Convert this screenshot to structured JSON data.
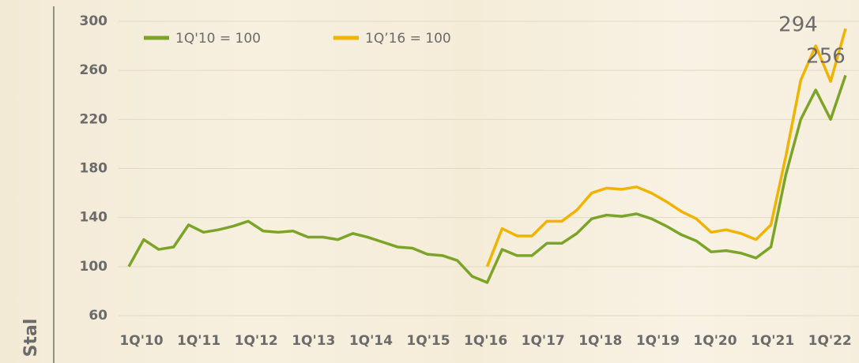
{
  "chart_data": {
    "type": "line",
    "y_label": "Stal",
    "categories": [
      "1Q'10",
      null,
      null,
      null,
      "1Q'11",
      null,
      null,
      null,
      "1Q'12",
      null,
      null,
      null,
      "1Q'13",
      null,
      null,
      null,
      "1Q'14",
      null,
      null,
      null,
      "1Q'15",
      null,
      null,
      null,
      "1Q'16",
      null,
      null,
      null,
      "1Q'17",
      null,
      null,
      null,
      "1Q'18",
      null,
      null,
      null,
      "1Q'19",
      null,
      null,
      null,
      "1Q'20",
      null,
      null,
      null,
      "1Q'21",
      null,
      null,
      null,
      "1Q'22"
    ],
    "series": [
      {
        "name": "1Q'10 = 100",
        "color": "#7ba428",
        "values": [
          100,
          122,
          114,
          116,
          134,
          128,
          130,
          133,
          137,
          129,
          128,
          129,
          124,
          124,
          122,
          127,
          124,
          120,
          116,
          115,
          110,
          109,
          105,
          92,
          87,
          114,
          109,
          109,
          119,
          119,
          127,
          139,
          142,
          141,
          143,
          139,
          133,
          126,
          121,
          112,
          113,
          111,
          107,
          116,
          175,
          220,
          244,
          220,
          256
        ]
      },
      {
        "name": "1Q’16 = 100",
        "color": "#f0b400",
        "values": [
          null,
          null,
          null,
          null,
          null,
          null,
          null,
          null,
          null,
          null,
          null,
          null,
          null,
          null,
          null,
          null,
          null,
          null,
          null,
          null,
          null,
          null,
          null,
          null,
          100,
          131,
          125,
          125,
          137,
          137,
          146,
          160,
          164,
          163,
          165,
          160,
          153,
          145,
          139,
          128,
          130,
          127,
          122,
          134,
          190,
          252,
          280,
          251,
          294
        ]
      }
    ],
    "annotations": [
      "294",
      "256"
    ],
    "ylim": [
      60,
      300
    ],
    "yticks": [
      60,
      100,
      140,
      180,
      220,
      260,
      300
    ],
    "grid": true
  }
}
